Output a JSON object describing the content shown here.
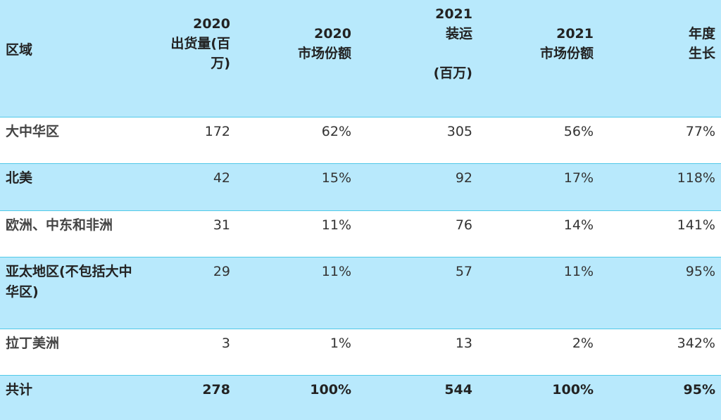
{
  "table": {
    "headers": {
      "region": "区域",
      "ship2020": [
        "2020",
        "出货量(百",
        "万)"
      ],
      "share2020": [
        "2020",
        "市场份额"
      ],
      "ship2021": [
        "2021",
        "装运",
        "",
        "(百万)"
      ],
      "share2021": [
        "2021",
        "市场份额"
      ],
      "growth": [
        "年度",
        "生长"
      ]
    },
    "rows": [
      {
        "region": "大中华区",
        "ship2020": "172",
        "share2020": "62%",
        "ship2021": "305",
        "share2021": "56%",
        "growth": "77%"
      },
      {
        "region": "北美",
        "ship2020": "42",
        "share2020": "15%",
        "ship2021": "92",
        "share2021": "17%",
        "growth": "118%"
      },
      {
        "region": "欧洲、中东和非洲",
        "ship2020": "31",
        "share2020": "11%",
        "ship2021": "76",
        "share2021": "14%",
        "growth": "141%"
      },
      {
        "region": "亚太地区(不包括大中华区)",
        "ship2020": "29",
        "share2020": "11%",
        "ship2021": "57",
        "share2021": "11%",
        "growth": "95%"
      },
      {
        "region": "拉丁美洲",
        "ship2020": "3",
        "share2020": "1%",
        "ship2021": "13",
        "share2021": "2%",
        "growth": "342%"
      }
    ],
    "total": {
      "region": "共计",
      "ship2020": "278",
      "share2020": "100%",
      "ship2021": "544",
      "share2021": "100%",
      "growth": "95%"
    }
  },
  "colors": {
    "row_blue": "#b8e9fc",
    "row_white": "#ffffff",
    "border": "#52c9e8",
    "text": "#333333"
  }
}
